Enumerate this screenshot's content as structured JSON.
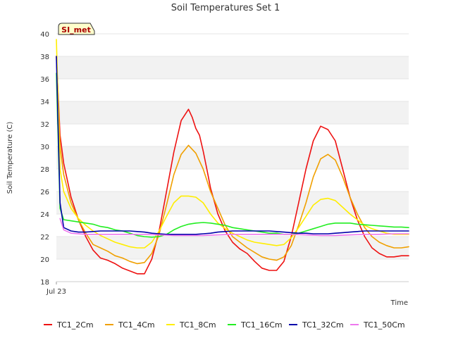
{
  "chart_data": {
    "type": "line",
    "title": "Soil Temperatures Set 1",
    "xlabel": "Time",
    "ylabel": "Soil Temperature (C)",
    "ylim": [
      18,
      40
    ],
    "yticks": [
      18,
      20,
      22,
      24,
      26,
      28,
      30,
      32,
      34,
      36,
      38,
      40
    ],
    "xlim": [
      0,
      48
    ],
    "x_unit": "hours since first tick",
    "xticks": [
      {
        "x": 0,
        "label": "Jul 23"
      }
    ],
    "badge": "SI_met",
    "grid": "horizontal alternating bands",
    "legend_position": "bottom",
    "series": [
      {
        "name": "TC1_2Cm",
        "color": "#ee1111",
        "x": [
          0,
          0.5,
          1,
          2,
          3,
          4,
          5,
          6,
          7,
          8,
          9,
          10,
          11,
          12,
          13,
          14,
          15,
          16,
          17,
          18,
          18.5,
          19,
          19.5,
          20,
          20.5,
          21,
          22,
          23,
          24,
          25,
          26,
          27,
          28,
          29,
          30,
          31,
          32,
          33,
          34,
          35,
          36,
          37,
          38,
          39,
          40,
          41,
          42,
          43,
          44,
          45,
          46,
          47,
          48
        ],
        "y": [
          38.0,
          31.0,
          28.5,
          25.5,
          23.5,
          22.0,
          20.8,
          20.1,
          19.9,
          19.6,
          19.2,
          18.95,
          18.7,
          18.7,
          20.0,
          22.5,
          26.0,
          29.5,
          32.3,
          33.3,
          32.6,
          31.6,
          31.0,
          29.6,
          28.0,
          26.3,
          24.0,
          22.5,
          21.5,
          20.9,
          20.5,
          19.8,
          19.2,
          19.0,
          19.0,
          19.8,
          22.0,
          25.0,
          28.0,
          30.5,
          31.8,
          31.5,
          30.5,
          28.0,
          25.5,
          23.5,
          22.0,
          21.0,
          20.5,
          20.2,
          20.2,
          20.3,
          20.3
        ]
      },
      {
        "name": "TC1_4Cm",
        "color": "#f0a000",
        "x": [
          0,
          0.5,
          1,
          2,
          3,
          4,
          5,
          6,
          7,
          8,
          9,
          10,
          11,
          12,
          13,
          14,
          15,
          16,
          17,
          18,
          19,
          20,
          21,
          22,
          23,
          24,
          25,
          26,
          27,
          28,
          29,
          30,
          31,
          32,
          33,
          34,
          35,
          36,
          37,
          38,
          39,
          40,
          41,
          42,
          43,
          44,
          45,
          46,
          47,
          48
        ],
        "y": [
          38.0,
          30.0,
          27.5,
          25.0,
          23.5,
          22.3,
          21.3,
          21.0,
          20.7,
          20.3,
          20.1,
          19.8,
          19.6,
          19.7,
          20.5,
          22.2,
          24.8,
          27.5,
          29.3,
          30.1,
          29.4,
          28.0,
          26.0,
          24.5,
          23.0,
          22.0,
          21.5,
          21.0,
          20.6,
          20.2,
          20.0,
          19.9,
          20.2,
          21.2,
          23.0,
          25.0,
          27.3,
          28.9,
          29.3,
          28.8,
          27.3,
          25.5,
          24.0,
          22.8,
          22.0,
          21.5,
          21.2,
          21.0,
          21.0,
          21.1
        ]
      },
      {
        "name": "TC1_8Cm",
        "color": "#ffee00",
        "x": [
          0,
          0.5,
          1,
          2,
          3,
          4,
          5,
          6,
          7,
          8,
          9,
          10,
          11,
          12,
          13,
          14,
          15,
          16,
          17,
          18,
          19,
          20,
          21,
          22,
          23,
          24,
          25,
          26,
          27,
          28,
          29,
          30,
          31,
          32,
          33,
          34,
          35,
          36,
          37,
          38,
          39,
          40,
          41,
          42,
          43,
          44,
          45,
          46,
          47,
          48
        ],
        "y": [
          39.5,
          28.0,
          26.0,
          24.5,
          23.6,
          23.0,
          22.5,
          22.1,
          21.8,
          21.5,
          21.3,
          21.1,
          21.0,
          21.0,
          21.5,
          22.5,
          23.8,
          25.0,
          25.6,
          25.6,
          25.5,
          25.0,
          24.0,
          23.2,
          22.7,
          22.3,
          22.0,
          21.7,
          21.5,
          21.4,
          21.3,
          21.2,
          21.3,
          21.9,
          22.8,
          23.8,
          24.8,
          25.3,
          25.4,
          25.2,
          24.6,
          24.0,
          23.5,
          23.0,
          22.7,
          22.5,
          22.3,
          22.2,
          22.2,
          22.2
        ]
      },
      {
        "name": "TC1_16Cm",
        "color": "#22ee22",
        "x": [
          0,
          0.5,
          1,
          2,
          3,
          4,
          5,
          6,
          7,
          8,
          9,
          10,
          11,
          12,
          13,
          14,
          15,
          16,
          17,
          18,
          19,
          20,
          21,
          22,
          23,
          24,
          25,
          26,
          27,
          28,
          29,
          30,
          31,
          32,
          33,
          34,
          35,
          36,
          37,
          38,
          39,
          40,
          41,
          42,
          43,
          44,
          45,
          46,
          47,
          48
        ],
        "y": [
          36.5,
          24.5,
          23.5,
          23.4,
          23.3,
          23.2,
          23.1,
          22.9,
          22.8,
          22.6,
          22.5,
          22.3,
          22.1,
          22.0,
          21.95,
          22.0,
          22.2,
          22.6,
          22.9,
          23.1,
          23.2,
          23.25,
          23.2,
          23.1,
          23.0,
          22.8,
          22.7,
          22.6,
          22.5,
          22.4,
          22.3,
          22.3,
          22.2,
          22.2,
          22.3,
          22.5,
          22.7,
          22.9,
          23.1,
          23.2,
          23.2,
          23.2,
          23.1,
          23.05,
          23.0,
          22.95,
          22.9,
          22.85,
          22.85,
          22.8
        ]
      },
      {
        "name": "TC1_32Cm",
        "color": "#0000aa",
        "x": [
          0,
          0.5,
          1,
          2,
          3,
          4,
          5,
          6,
          7,
          8,
          9,
          10,
          11,
          12,
          13,
          14,
          15,
          16,
          17,
          18,
          19,
          20,
          21,
          22,
          23,
          24,
          25,
          26,
          27,
          28,
          29,
          30,
          31,
          32,
          33,
          34,
          35,
          36,
          37,
          38,
          39,
          40,
          41,
          42,
          43,
          44,
          45,
          46,
          47,
          48
        ],
        "y": [
          38.0,
          25.0,
          22.8,
          22.5,
          22.4,
          22.4,
          22.45,
          22.5,
          22.5,
          22.5,
          22.5,
          22.5,
          22.45,
          22.4,
          22.3,
          22.25,
          22.2,
          22.2,
          22.2,
          22.2,
          22.2,
          22.25,
          22.3,
          22.4,
          22.45,
          22.5,
          22.5,
          22.5,
          22.5,
          22.5,
          22.5,
          22.45,
          22.4,
          22.35,
          22.3,
          22.3,
          22.25,
          22.25,
          22.25,
          22.3,
          22.35,
          22.4,
          22.45,
          22.5,
          22.5,
          22.5,
          22.5,
          22.5,
          22.5,
          22.5
        ]
      },
      {
        "name": "TC1_50Cm",
        "color": "#ee77ee",
        "x": [
          0.5,
          1,
          2,
          4,
          6,
          8,
          10,
          12,
          14,
          16,
          18,
          20,
          22,
          24,
          26,
          28,
          30,
          32,
          34,
          36,
          38,
          40,
          42,
          44,
          46,
          48
        ],
        "y": [
          23.6,
          22.6,
          22.3,
          22.2,
          22.2,
          22.2,
          22.2,
          22.2,
          22.15,
          22.1,
          22.1,
          22.1,
          22.15,
          22.2,
          22.2,
          22.2,
          22.2,
          22.2,
          22.15,
          22.1,
          22.1,
          22.15,
          22.2,
          22.2,
          22.25,
          22.25
        ]
      }
    ]
  }
}
